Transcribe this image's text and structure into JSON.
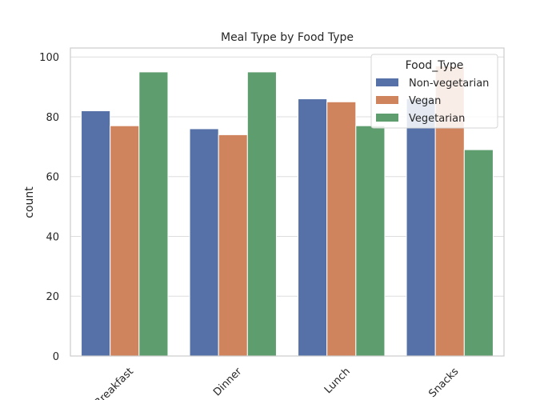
{
  "chart_data": {
    "type": "bar",
    "title": "Meal Type by Food Type",
    "xlabel": "",
    "ylabel": "count",
    "categories": [
      "Breakfast",
      "Dinner",
      "Lunch",
      "Snacks"
    ],
    "series": [
      {
        "name": "Non-vegetarian",
        "color": "#5571a8",
        "values": [
          82,
          76,
          86,
          86
        ]
      },
      {
        "name": "Vegan",
        "color": "#cf845d",
        "values": [
          77,
          74,
          85,
          97
        ]
      },
      {
        "name": "Vegetarian",
        "color": "#5e9e6e",
        "values": [
          95,
          95,
          77,
          69
        ]
      }
    ],
    "ylim": [
      0,
      103
    ],
    "yticks": [
      0,
      20,
      40,
      60,
      80,
      100
    ],
    "grid": true,
    "legend": {
      "title": "Food_Type",
      "placement": "top-right"
    }
  }
}
